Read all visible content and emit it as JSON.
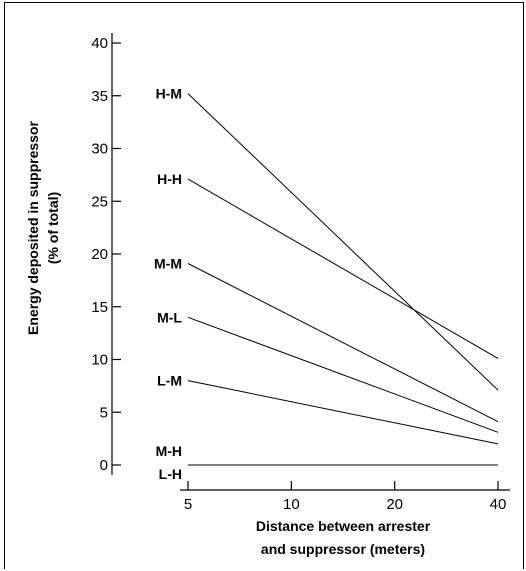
{
  "chart_data": {
    "type": "line",
    "x": [
      5,
      40
    ],
    "x_ticks": [
      5,
      10,
      20,
      40
    ],
    "x_tick_labels": [
      "5",
      "10",
      "20",
      "40"
    ],
    "xlim": [
      5,
      40
    ],
    "x_scale": "log",
    "ylim": [
      0,
      40
    ],
    "y_ticks": [
      0,
      5,
      10,
      15,
      20,
      25,
      30,
      35,
      40
    ],
    "y_tick_labels": [
      "0",
      "5",
      "10",
      "15",
      "20",
      "25",
      "30",
      "35",
      "40"
    ],
    "xlabel": [
      "Distance between arrester",
      "and suppressor (meters)"
    ],
    "ylabel": [
      "Energy deposited in suppressor",
      "(% of total)"
    ],
    "title": "",
    "grid": false,
    "series": [
      {
        "name": "H-M",
        "values": [
          35.2,
          7.1
        ]
      },
      {
        "name": "H-H",
        "values": [
          27.1,
          10.1
        ]
      },
      {
        "name": "M-M",
        "values": [
          19.1,
          4.1
        ]
      },
      {
        "name": "M-L",
        "values": [
          14.0,
          3.1
        ]
      },
      {
        "name": "L-M",
        "values": [
          8.0,
          2.0
        ]
      },
      {
        "name": "M-H",
        "values": [
          0.0,
          0.0
        ]
      },
      {
        "name": "L-H",
        "values": [
          0.0,
          0.0
        ]
      }
    ]
  }
}
